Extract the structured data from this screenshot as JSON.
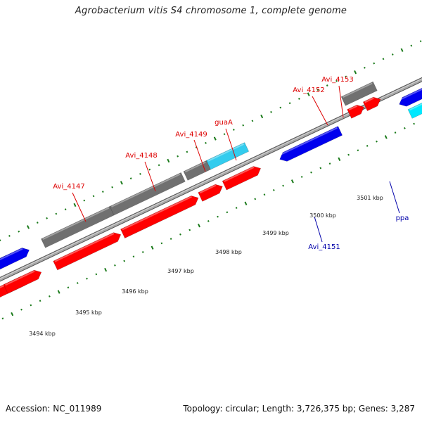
{
  "title": "Agrobacterium vitis S4 chromosome 1, complete genome",
  "accession": "Accession: NC_011989",
  "summary": "Topology: circular; Length: 3,726,375 bp; Genes: 3,287",
  "kbp_labels": [
    {
      "kbp": 3494,
      "text": "3494 kbp"
    },
    {
      "kbp": 3495,
      "text": "3495 kbp"
    },
    {
      "kbp": 3496,
      "text": "3496 kbp"
    },
    {
      "kbp": 3497,
      "text": "3497 kbp"
    },
    {
      "kbp": 3498,
      "text": "3498 kbp"
    },
    {
      "kbp": 3499,
      "text": "3499 kbp"
    },
    {
      "kbp": 3500,
      "text": "3500 kbp"
    },
    {
      "kbp": 3501,
      "text": "3501 kbp"
    }
  ],
  "genes": [
    {
      "name": "Avi_4147",
      "label_color": "#dd0000"
    },
    {
      "name": "Avi_4148",
      "label_color": "#dd0000"
    },
    {
      "name": "Avi_4149",
      "label_color": "#dd0000"
    },
    {
      "name": "guaA",
      "label_color": "#dd0000"
    },
    {
      "name": "Avi_4151",
      "label_color": "#0000aa"
    },
    {
      "name": "Avi_4152",
      "label_color": "#dd0000"
    },
    {
      "name": "Avi_4153",
      "label_color": "#dd0000"
    },
    {
      "name": "ppa",
      "label_color": "#0000aa"
    }
  ],
  "colors": {
    "forward_cds": "#ff0000",
    "reverse_cds": "#0000ee",
    "gene_grey": "#707070",
    "rna_cyan": "#33ccee",
    "tick_green": "#1a7a1a",
    "backbone": "#909090"
  }
}
